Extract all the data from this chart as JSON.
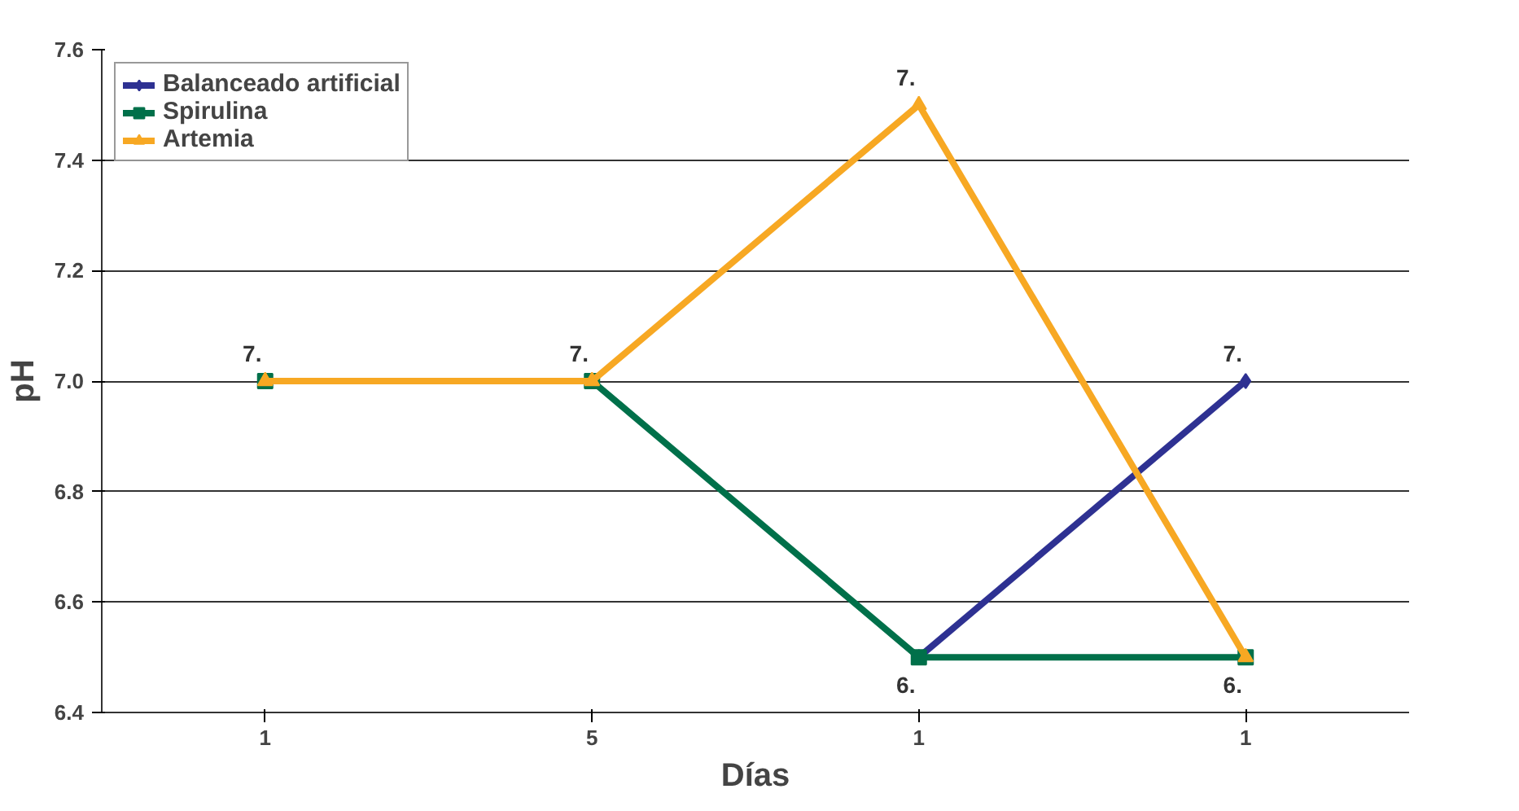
{
  "chart_data": {
    "type": "line",
    "xlabel": "Días",
    "ylabel": "pH",
    "categories": [
      "1",
      "5",
      "1",
      "1"
    ],
    "ylim": [
      6.4,
      7.6
    ],
    "yticks": [
      6.4,
      6.6,
      6.8,
      {
        "value": 7.0,
        "label": "7.0"
      },
      7.2,
      7.4,
      7.6
    ],
    "grid": "y",
    "legend": "top left",
    "series": [
      {
        "name": "Balanceado artificial",
        "color": "#2e3192",
        "marker": "diamond",
        "values": [
          null,
          null,
          6.5,
          7.0
        ],
        "value_labels": [
          null,
          null,
          "6.",
          "7."
        ]
      },
      {
        "name": "Spirulina",
        "color": "#00704a",
        "marker": "square",
        "values": [
          7.0,
          7.0,
          6.5,
          6.5
        ],
        "value_labels": [
          null,
          null,
          null,
          null
        ]
      },
      {
        "name": "Artemia",
        "color": "#f7a823",
        "marker": "triangle",
        "values": [
          7.0,
          7.0,
          7.5,
          6.5
        ],
        "value_labels": [
          "7.",
          "7.",
          "7.",
          "6."
        ]
      }
    ]
  }
}
